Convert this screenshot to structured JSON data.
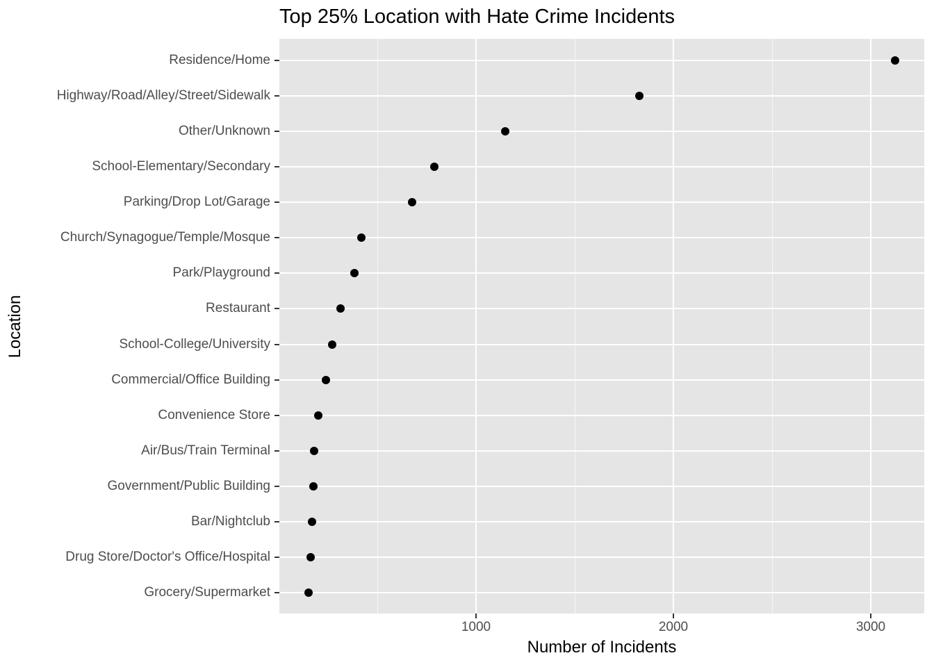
{
  "chart_data": {
    "type": "scatter",
    "title": "Top 25% Location with Hate Crime Incidents",
    "xlabel": "Number of Incidents",
    "ylabel": "Location",
    "xlim": [
      0,
      3270
    ],
    "x_ticks": [
      1000,
      2000,
      3000
    ],
    "x_tick_labels": [
      "1000",
      "2000",
      "3000"
    ],
    "x_minor_gridlines": [
      500,
      1500,
      2500
    ],
    "grid": true,
    "legend": null,
    "categories": [
      "Residence/Home",
      "Highway/Road/Alley/Street/Sidewalk",
      "Other/Unknown",
      "School-Elementary/Secondary",
      "Parking/Drop Lot/Garage",
      "Church/Synagogue/Temple/Mosque",
      "Park/Playground",
      "Restaurant",
      "School-College/University",
      "Commercial/Office Building",
      "Convenience Store",
      "Air/Bus/Train Terminal",
      "Government/Public Building",
      "Bar/Nightclub",
      "Drug Store/Doctor's Office/Hospital",
      "Grocery/Supermarket"
    ],
    "values": [
      3123,
      1827,
      1148,
      789,
      676,
      419,
      384,
      313,
      271,
      239,
      201,
      180,
      176,
      169,
      162,
      151
    ],
    "colors": {
      "panel_bg": "#e5e5e5",
      "grid": "#ffffff",
      "point": "#000000",
      "axis_text": "#4d4d4d"
    }
  }
}
